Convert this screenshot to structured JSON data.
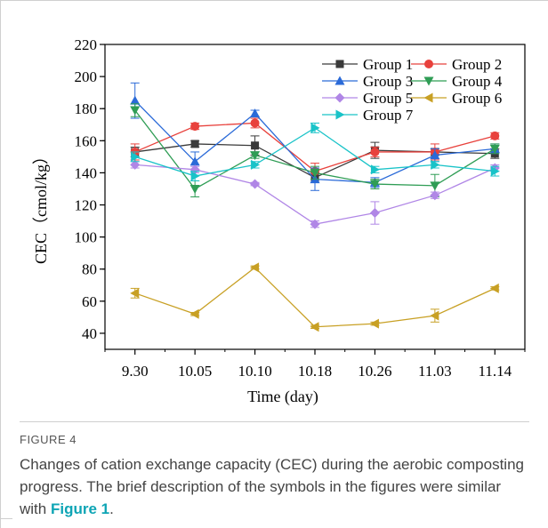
{
  "figure": {
    "label": "FIGURE 4",
    "caption_before": "Changes of cation exchange capacity (CEC) during the aerobic composting progress. The brief description of the symbols in the figures were similar with ",
    "caption_ref": "Figure 1",
    "caption_after": "."
  },
  "chart_data": {
    "type": "line",
    "xlabel": "Time (day)",
    "ylabel": "CEC（cmol/kg）",
    "ylim": [
      30,
      220
    ],
    "yticks": [
      40,
      60,
      80,
      100,
      120,
      140,
      160,
      180,
      200,
      220
    ],
    "categories": [
      "9.30",
      "10.05",
      "10.10",
      "10.18",
      "10.26",
      "11.03",
      "11.14"
    ],
    "legend_position": "top-right",
    "series": [
      {
        "name": "Group 1",
        "color": "#3a3a3a",
        "marker": "square",
        "values": [
          153,
          158,
          157,
          137,
          154,
          153,
          152
        ],
        "errors": [
          3,
          2,
          6,
          3,
          5,
          2,
          3
        ]
      },
      {
        "name": "Group 2",
        "color": "#e8413c",
        "marker": "circle",
        "values": [
          153,
          169,
          171,
          141,
          153,
          153,
          163
        ],
        "errors": [
          5,
          2,
          3,
          5,
          3,
          5,
          2
        ]
      },
      {
        "name": "Group 3",
        "color": "#2a6ad8",
        "marker": "triangle-up",
        "values": [
          185,
          147,
          177,
          136,
          134,
          151,
          155
        ],
        "errors": [
          11,
          6,
          2,
          7,
          3,
          4,
          3
        ]
      },
      {
        "name": "Group 4",
        "color": "#2f9d55",
        "marker": "triangle-down",
        "values": [
          179,
          130,
          151,
          140,
          133,
          132,
          155
        ],
        "errors": [
          4,
          5,
          2,
          4,
          3,
          7,
          3
        ]
      },
      {
        "name": "Group 5",
        "color": "#b086e6",
        "marker": "diamond",
        "values": [
          145,
          142,
          133,
          108,
          115,
          126,
          143
        ],
        "errors": [
          2,
          2,
          1,
          2,
          7,
          2,
          2
        ]
      },
      {
        "name": "Group 6",
        "color": "#c8a024",
        "marker": "triangle-left",
        "values": [
          65,
          52,
          81,
          44,
          46,
          51,
          68
        ],
        "errors": [
          3,
          1,
          1,
          1,
          1,
          4,
          1
        ]
      },
      {
        "name": "Group 7",
        "color": "#19c3c8",
        "marker": "triangle-right",
        "values": [
          150,
          138,
          145,
          168,
          142,
          145,
          141
        ],
        "errors": [
          3,
          3,
          2,
          3,
          2,
          2,
          3
        ]
      }
    ]
  }
}
